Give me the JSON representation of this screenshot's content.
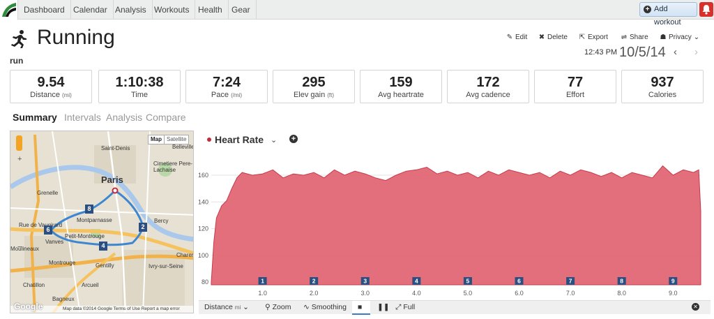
{
  "nav": {
    "tabs": [
      "Dashboard",
      "Calendar",
      "Analysis",
      "Workouts",
      "Health",
      "Gear"
    ],
    "add_workout": "Add workout"
  },
  "header": {
    "title": "Running",
    "subtitle": "run",
    "time": "12:43 PM",
    "date": "10/5/14"
  },
  "actions": {
    "edit": "Edit",
    "delete": "Delete",
    "export": "Export",
    "share": "Share",
    "privacy": "Privacy"
  },
  "stats": [
    {
      "value": "9.54",
      "label": "Distance",
      "unit": "(mi)"
    },
    {
      "value": "1:10:38",
      "label": "Time",
      "unit": ""
    },
    {
      "value": "7:24",
      "label": "Pace",
      "unit": "(/mi)"
    },
    {
      "value": "295",
      "label": "Elev gain",
      "unit": "(ft)"
    },
    {
      "value": "159",
      "label": "Avg heartrate",
      "unit": ""
    },
    {
      "value": "172",
      "label": "Avg cadence",
      "unit": ""
    },
    {
      "value": "77",
      "label": "Effort",
      "unit": ""
    },
    {
      "value": "937",
      "label": "Calories",
      "unit": ""
    }
  ],
  "subtabs": [
    "Summary",
    "Intervals",
    "Analysis",
    "Compare"
  ],
  "map": {
    "toggle_map": "Map",
    "toggle_satellite": "Satellite",
    "city": "Paris",
    "labels": [
      "Belleville",
      "Saint-Denis",
      "Cimetiere Pere-Lachaise",
      "Grenelle",
      "Ivry-sur-Seine",
      "Montrouge",
      "Gentilly",
      "Chatillon",
      "Bagneux",
      "Arcueil",
      "Bercy",
      "Moulineaux",
      "Vanves",
      "Montparnasse",
      "Charentes",
      "Rue de Vaugirard",
      "Petit-Montrouge"
    ],
    "markers": [
      "8",
      "6",
      "4",
      "2"
    ],
    "footer": "Map data ©2014 Google   Terms of Use   Report a map error",
    "google": "Google"
  },
  "chart_header": {
    "title": "Heart Rate",
    "caret": "⌄"
  },
  "chart_data": {
    "type": "area",
    "title": "Heart Rate",
    "xlabel": "Distance",
    "xunit": "mi",
    "x_ticks": [
      1.0,
      2.0,
      3.0,
      4.0,
      5.0,
      6.0,
      7.0,
      8.0,
      9.0
    ],
    "y_ticks": [
      80,
      100,
      120,
      140,
      160
    ],
    "xlim": [
      0,
      9.54
    ],
    "ylim": [
      78,
      172
    ],
    "grid": true,
    "lap_markers": [
      "1",
      "2",
      "3",
      "4",
      "5",
      "6",
      "7",
      "8",
      "9"
    ],
    "x": [
      0.0,
      0.05,
      0.1,
      0.2,
      0.3,
      0.4,
      0.5,
      0.6,
      0.8,
      1.0,
      1.2,
      1.4,
      1.6,
      1.8,
      2.0,
      2.2,
      2.4,
      2.6,
      2.8,
      3.0,
      3.2,
      3.4,
      3.6,
      3.8,
      4.0,
      4.2,
      4.4,
      4.6,
      4.8,
      5.0,
      5.2,
      5.4,
      5.6,
      5.8,
      6.0,
      6.2,
      6.4,
      6.6,
      6.8,
      7.0,
      7.2,
      7.4,
      7.6,
      7.8,
      8.0,
      8.2,
      8.4,
      8.6,
      8.8,
      9.0,
      9.2,
      9.4,
      9.5,
      9.54
    ],
    "y": [
      80,
      110,
      128,
      137,
      141,
      150,
      158,
      162,
      160,
      161,
      164,
      158,
      161,
      160,
      162,
      158,
      164,
      160,
      163,
      161,
      158,
      156,
      160,
      163,
      164,
      166,
      161,
      163,
      160,
      162,
      158,
      163,
      160,
      164,
      162,
      160,
      162,
      158,
      163,
      160,
      164,
      162,
      159,
      162,
      158,
      162,
      160,
      158,
      167,
      160,
      164,
      162,
      164,
      133
    ]
  },
  "toolbar": {
    "distance": "Distance",
    "distance_unit": "mi",
    "zoom": "Zoom",
    "smoothing": "Smoothing",
    "full": "Full"
  }
}
